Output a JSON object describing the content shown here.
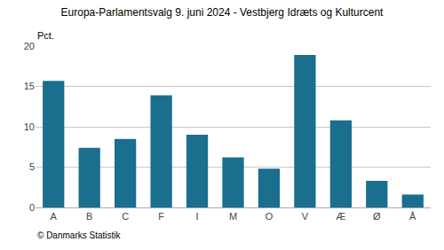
{
  "chart_data": {
    "type": "bar",
    "title": "Europa-Parlamentsvalg 9. juni 2024 - Vestbjerg Idræts og Kulturcent",
    "ylabel": "Pct.",
    "annotations": [
      "© Danmarks Statistik"
    ],
    "categories": [
      "A",
      "B",
      "C",
      "F",
      "I",
      "M",
      "O",
      "V",
      "Æ",
      "Ø",
      "Å"
    ],
    "values": [
      15.7,
      7.4,
      8.5,
      13.9,
      9.0,
      6.2,
      4.8,
      18.9,
      10.8,
      3.3,
      1.6
    ],
    "color": "#1a6e8e",
    "ylim": [
      0,
      20
    ],
    "yticks": [
      0,
      5,
      10,
      15,
      20
    ],
    "grid": true
  }
}
